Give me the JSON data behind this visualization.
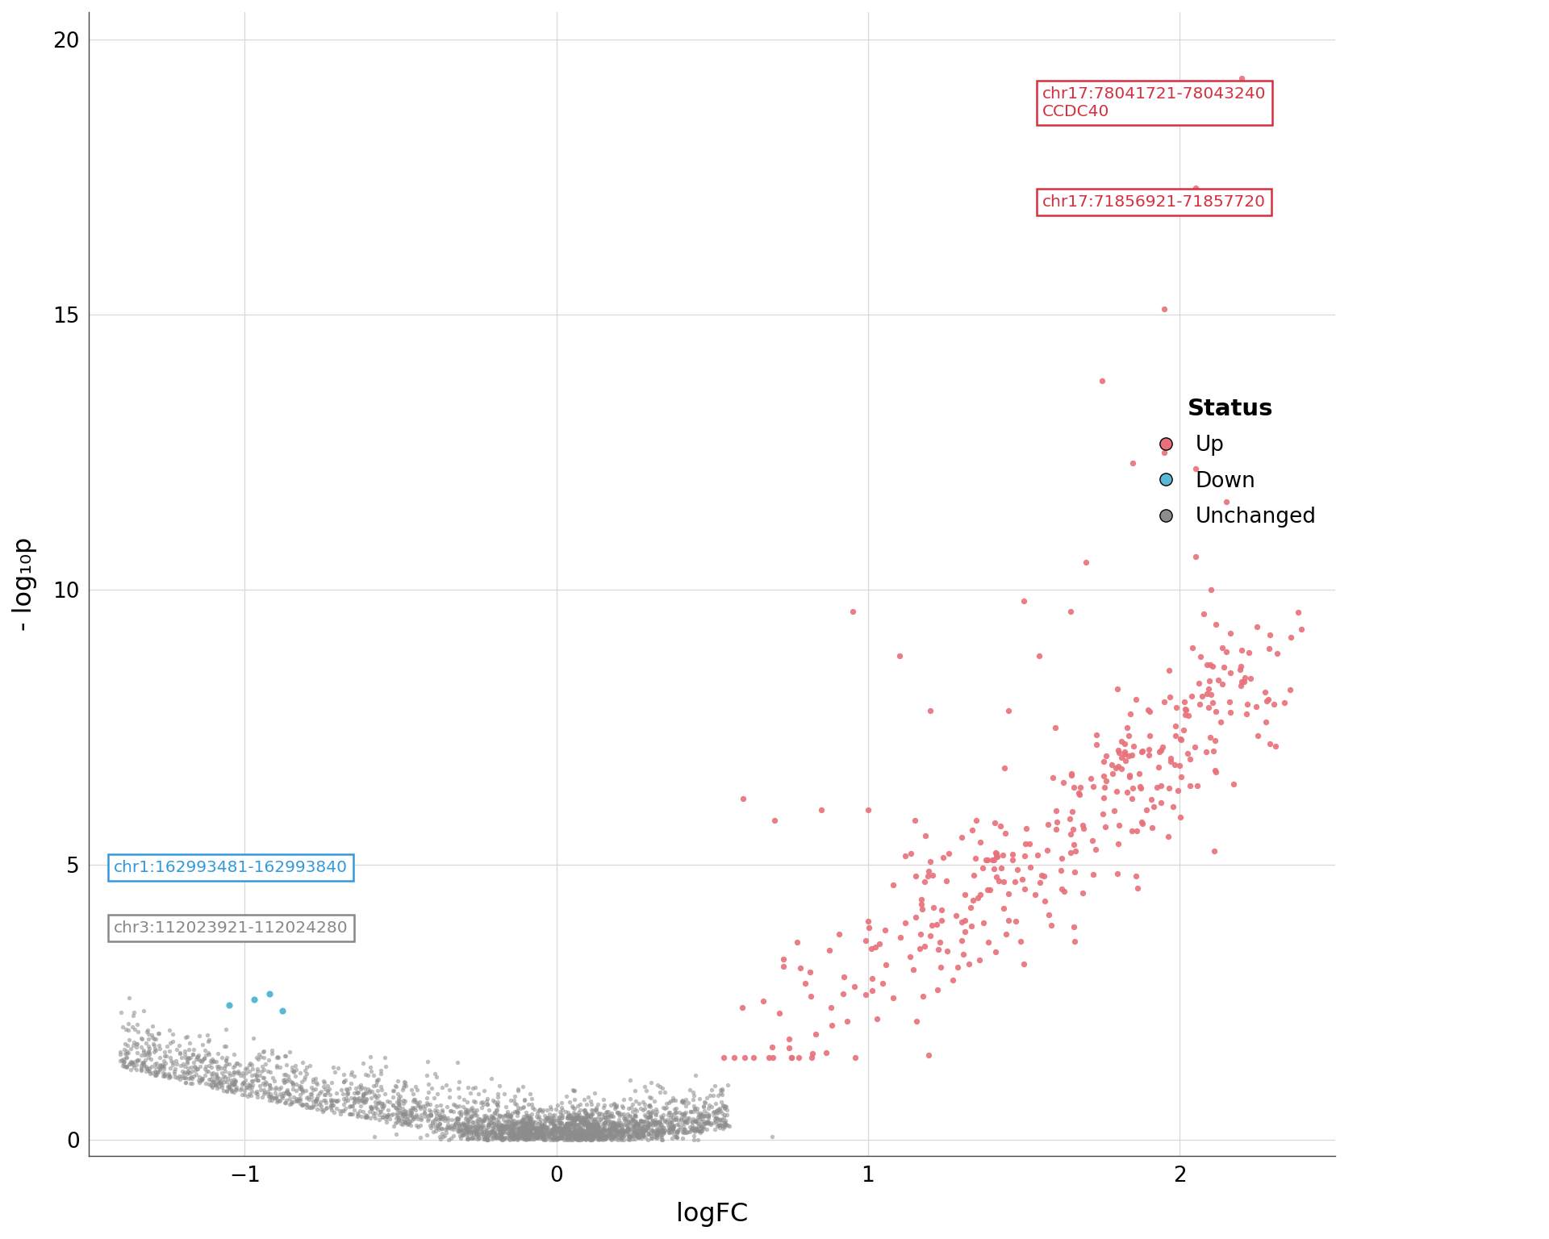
{
  "xlabel": "logFC",
  "ylabel": "- log₁₀p",
  "xlim": [
    -1.5,
    2.5
  ],
  "ylim": [
    -0.3,
    20.5
  ],
  "xticks": [
    -1,
    0,
    1,
    2
  ],
  "yticks": [
    0,
    5,
    10,
    15,
    20
  ],
  "background_color": "#ffffff",
  "grid_color": "#d8d8d8",
  "up_color": "#E8707A",
  "down_color": "#5BB8D4",
  "unchanged_color": "#8C8C8C",
  "annotations_up": [
    {
      "label": "chr17:78041721-78043240\nCCDC40",
      "pt_x": 2.2,
      "pt_y": 19.3,
      "color": "#D63040"
    },
    {
      "label": "chr17:71856921-71857720",
      "pt_x": 2.05,
      "pt_y": 17.3,
      "color": "#D63040"
    }
  ],
  "annotations_down": [
    {
      "label": "chr1:162993481-162993840",
      "pt_x": -1.08,
      "pt_y": 4.95,
      "color": "#3399DD"
    },
    {
      "label": "chr3:112023921-112024280",
      "pt_x": -1.08,
      "pt_y": 3.85,
      "color": "#888888"
    }
  ],
  "legend_title": "Status",
  "legend_up": "Up",
  "legend_down": "Down",
  "legend_unchanged": "Unchanged"
}
